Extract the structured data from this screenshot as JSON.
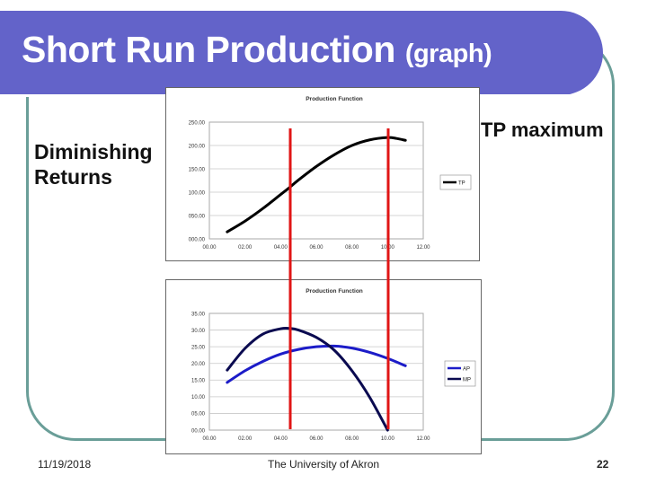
{
  "slide": {
    "title": "Short Run Production",
    "title_suffix": "(graph)",
    "left_note": "Diminishing Returns",
    "left_note_line1": "Diminishing",
    "left_note_line2": "Returns",
    "right_note": "TP maximum",
    "footer": {
      "date": "11/19/2018",
      "organization": "The University of Akron",
      "page_number": "22"
    },
    "colors": {
      "banner": "#6363c9",
      "frame": "#6a9e98",
      "marker_lines": "#e01515",
      "tp": "#000000",
      "ap": "#1c1cc8",
      "mp": "#0a0a50"
    }
  },
  "chart_data": [
    {
      "type": "line",
      "title": "Production Function",
      "xlabel": "",
      "ylabel": "",
      "xlim": [
        0,
        12
      ],
      "ylim": [
        0,
        250
      ],
      "x_ticks": [
        "00.00",
        "02.00",
        "04.00",
        "06.00",
        "08.00",
        "10.00",
        "12.00"
      ],
      "y_ticks": [
        "000.00",
        "050.00",
        "100.00",
        "150.00",
        "200.00",
        "250.00"
      ],
      "grid": true,
      "legend_position": "right",
      "series": [
        {
          "name": "TP",
          "x": [
            1,
            2,
            3,
            4,
            4.5,
            5,
            6,
            7,
            8,
            9,
            10,
            10.5,
            11
          ],
          "values": [
            15,
            38,
            65,
            95,
            110,
            126,
            155,
            180,
            200,
            212,
            217,
            215,
            211
          ]
        }
      ],
      "annotations": [
        {
          "type": "vertical_line",
          "x": 4.5,
          "color": "#e01515"
        },
        {
          "type": "vertical_line",
          "x": 10.0,
          "color": "#e01515"
        }
      ]
    },
    {
      "type": "line",
      "title": "Production Function",
      "xlabel": "",
      "ylabel": "",
      "xlim": [
        0,
        12
      ],
      "ylim": [
        0,
        35
      ],
      "x_ticks": [
        "00.00",
        "02.00",
        "04.00",
        "06.00",
        "08.00",
        "10.00",
        "12.00"
      ],
      "y_ticks": [
        "00.00",
        "05.00",
        "10.00",
        "15.00",
        "20.00",
        "25.00",
        "30.00",
        "35.00"
      ],
      "grid": true,
      "legend_position": "right",
      "series": [
        {
          "name": "AP",
          "x": [
            1,
            2,
            3,
            4,
            5,
            6,
            7,
            8,
            9,
            10,
            11
          ],
          "values": [
            14.3,
            17.8,
            20.6,
            22.8,
            24.2,
            25.0,
            25.2,
            24.6,
            23.3,
            21.5,
            19.3
          ]
        },
        {
          "name": "MP",
          "x": [
            1,
            2,
            3,
            4,
            4.5,
            5,
            6,
            7,
            8,
            9,
            10
          ],
          "values": [
            18.0,
            24.5,
            28.8,
            30.4,
            30.5,
            30.0,
            27.8,
            24.0,
            17.8,
            9.8,
            0.0
          ]
        }
      ],
      "annotations": [
        {
          "type": "vertical_line",
          "x": 4.5,
          "color": "#e01515"
        },
        {
          "type": "vertical_line",
          "x": 10.0,
          "color": "#e01515"
        }
      ]
    }
  ]
}
